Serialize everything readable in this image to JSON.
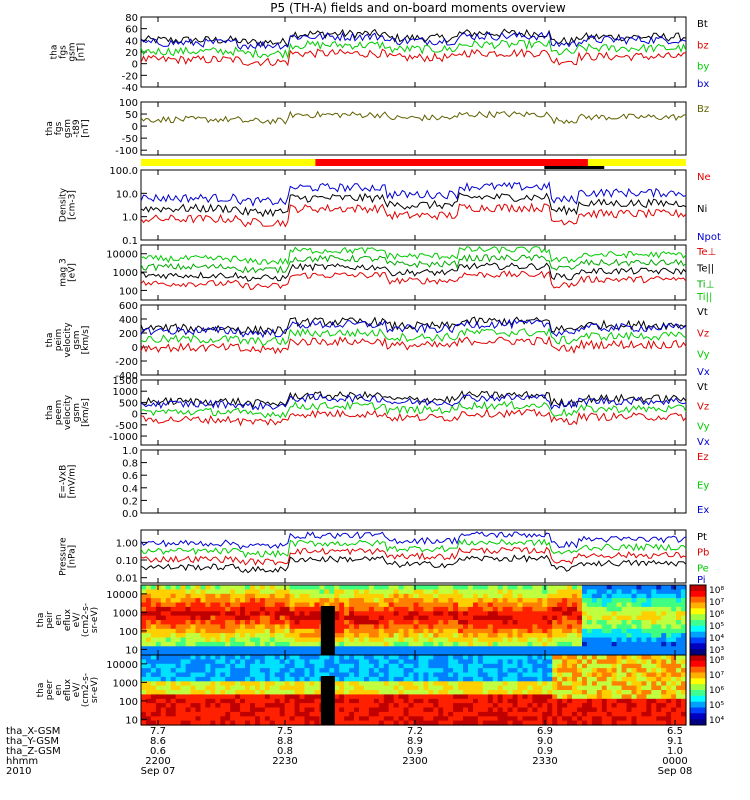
{
  "title": "P5 (TH-A) fields and on-board moments overview",
  "chart_data": {
    "type": "line",
    "x_ticks": [
      "2200",
      "2230",
      "2300",
      "2330",
      "0000"
    ],
    "panels": [
      {
        "id": "fgs",
        "ylabel": [
          "tha",
          "fgs",
          "gsm",
          "[nT]"
        ],
        "ylim": [
          -40,
          80
        ],
        "ticks": [
          "80",
          "60",
          "40",
          "20",
          "0",
          "-20",
          "-40"
        ],
        "tickvals": [
          80,
          60,
          40,
          20,
          0,
          -20,
          -40
        ],
        "legend": [
          {
            "name": "Bt",
            "color": "#000000"
          },
          {
            "name": "bz",
            "color": "#e00000"
          },
          {
            "name": "by",
            "color": "#00cc00"
          },
          {
            "name": "bx",
            "color": "#0000d0"
          }
        ]
      },
      {
        "id": "fgs_pol",
        "ylabel": [
          "tha",
          "fgs",
          "gsm",
          "-t89",
          "[nT]"
        ],
        "ylim": [
          -120,
          100
        ],
        "ticks": [
          "100",
          "50",
          "0",
          "-50",
          "-100"
        ],
        "tickvals": [
          100,
          50,
          0,
          -50,
          -100
        ],
        "legend": [
          {
            "name": "Bz",
            "color": "#606000"
          }
        ]
      },
      {
        "id": "density",
        "ylabel": [
          "Density",
          "[cm-3]"
        ],
        "ylim": [
          0.1,
          100
        ],
        "log": true,
        "ticks": [
          "100.0",
          "10.0",
          "1.0",
          "0.1"
        ],
        "tickvals": [
          100,
          10,
          1,
          0.1
        ],
        "legend": [
          {
            "name": "Ne",
            "color": "#e00000"
          },
          {
            "name": "Ni",
            "color": "#000000"
          },
          {
            "name": "Npot",
            "color": "#0000d0"
          }
        ]
      },
      {
        "id": "temp",
        "ylabel": [
          "mag 3",
          "[eV]"
        ],
        "ylim": [
          30,
          30000
        ],
        "log": true,
        "ticks": [
          "10000",
          "1000",
          "100"
        ],
        "tickvals": [
          10000,
          1000,
          100
        ],
        "legend": [
          {
            "name": "Te⊥",
            "color": "#e00000"
          },
          {
            "name": "Te||",
            "color": "#000000"
          },
          {
            "name": "Ti⊥",
            "color": "#00aa00"
          },
          {
            "name": "Ti||",
            "color": "#00cc00"
          }
        ]
      },
      {
        "id": "vel_peim",
        "ylabel": [
          "tha",
          "peim",
          "velocity",
          "gsm",
          "[km/s]"
        ],
        "ylim": [
          -400,
          600
        ],
        "ticks": [
          "600",
          "400",
          "200",
          "0",
          "-200",
          "-400"
        ],
        "tickvals": [
          600,
          400,
          200,
          0,
          -200,
          -400
        ],
        "legend": [
          {
            "name": "Vt",
            "color": "#000000"
          },
          {
            "name": "Vz",
            "color": "#e00000"
          },
          {
            "name": "Vy",
            "color": "#00cc00"
          },
          {
            "name": "Vx",
            "color": "#0000d0"
          }
        ]
      },
      {
        "id": "vel_peem",
        "ylabel": [
          "tha",
          "peem",
          "velocity",
          "gsm",
          "[km/s]"
        ],
        "ylim": [
          -1400,
          1500
        ],
        "ticks": [
          "1500",
          "1000",
          "500",
          "0",
          "-500",
          "-1000"
        ],
        "tickvals": [
          1500,
          1000,
          500,
          0,
          -500,
          -1000
        ],
        "legend": [
          {
            "name": "Vt",
            "color": "#000000"
          },
          {
            "name": "Vz",
            "color": "#e00000"
          },
          {
            "name": "Vy",
            "color": "#00cc00"
          },
          {
            "name": "Vx",
            "color": "#0000d0"
          }
        ]
      },
      {
        "id": "efield",
        "ylabel": [
          "E=-VxB",
          "[mV/m]"
        ],
        "ylim": [
          0,
          1
        ],
        "ticks": [
          "1.0",
          "0.8",
          "0.6",
          "0.4",
          "0.2",
          "0.0"
        ],
        "tickvals": [
          1,
          0.8,
          0.6,
          0.4,
          0.2,
          0
        ],
        "legend": [
          {
            "name": "Ez",
            "color": "#e00000"
          },
          {
            "name": "Ey",
            "color": "#00cc00"
          },
          {
            "name": "Ex",
            "color": "#0000d0"
          }
        ]
      },
      {
        "id": "pressure",
        "ylabel": [
          "Pressure",
          "[nPa]"
        ],
        "ylim": [
          0.005,
          5
        ],
        "log": true,
        "ticks": [
          "1.00",
          "0.10",
          "0.01"
        ],
        "tickvals": [
          1,
          0.1,
          0.01
        ],
        "legend": [
          {
            "name": "Pt",
            "color": "#000000"
          },
          {
            "name": "Pb",
            "color": "#e00000"
          },
          {
            "name": "Pe",
            "color": "#00cc00"
          },
          {
            "name": "Pi",
            "color": "#0000d0"
          }
        ]
      },
      {
        "id": "peir",
        "ylabel": [
          "tha",
          "peir",
          "en",
          "eflux",
          "eV/",
          "(cm2-s-",
          "sr-eV)"
        ],
        "ylim": [
          5,
          30000
        ],
        "log": true,
        "ticks": [
          "10000",
          "1000",
          "100",
          "10"
        ],
        "tickvals": [
          10000,
          1000,
          100,
          10
        ],
        "colorbar": [
          "10⁸",
          "10⁷",
          "10⁶",
          "10⁵",
          "10⁴",
          "10³"
        ]
      },
      {
        "id": "peer",
        "ylabel": [
          "tha",
          "peer",
          "en",
          "eflux",
          "eV/",
          "(cm2-s-",
          "sr-eV)"
        ],
        "ylim": [
          5,
          30000
        ],
        "log": true,
        "ticks": [
          "10000",
          "1000",
          "100",
          "10"
        ],
        "tickvals": [
          10000,
          1000,
          100,
          10
        ],
        "colorbar": [
          "10⁸",
          "10⁷",
          "10⁶",
          "10⁵",
          "10⁴"
        ]
      }
    ]
  },
  "footer": {
    "labels": [
      "tha_X-GSM",
      "tha_Y-GSM",
      "tha_Z-GSM",
      "hhmm",
      "2010"
    ],
    "x": [
      "7.7",
      "7.5",
      "7.2",
      "6.9",
      "6.5"
    ],
    "y": [
      "8.6",
      "8.8",
      "8.9",
      "9.0",
      "9.1"
    ],
    "z": [
      "0.6",
      "0.8",
      "0.9",
      "0.9",
      "1.0"
    ],
    "hhmm": [
      "2200",
      "2230",
      "2300",
      "2330",
      "0000"
    ],
    "date_start": "Sep 07",
    "date_end": "Sep 08"
  }
}
